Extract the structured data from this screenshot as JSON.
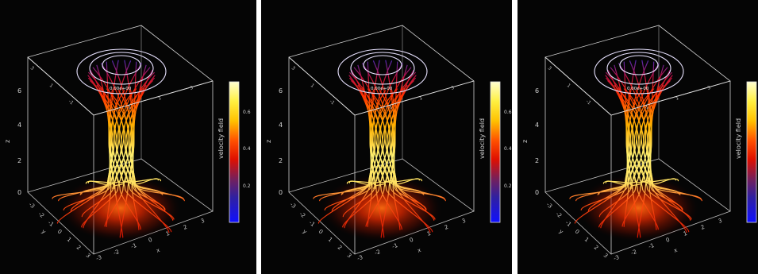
{
  "panels": [
    {
      "id": "panel-1",
      "z_axis_label": "z",
      "z_ticks": [
        "0",
        "2",
        "4",
        "6"
      ],
      "x_axis_label": "x",
      "x_ticks": [
        "-3",
        "-2",
        "-1",
        "0",
        "1",
        "2",
        "3"
      ],
      "y_axis_label": "y",
      "y_ticks": [
        "-3",
        "-2",
        "-1",
        "0",
        "1",
        "2",
        "3"
      ],
      "contour_label": "0.00e+00",
      "colorbar": {
        "title": "velocity field",
        "ticks": [
          "0.2",
          "0.4",
          "0.6"
        ]
      }
    },
    {
      "id": "panel-2",
      "z_axis_label": "z",
      "z_ticks": [
        "0",
        "2",
        "4",
        "6"
      ],
      "x_axis_label": "x",
      "x_ticks": [
        "-3",
        "-2",
        "-1",
        "0",
        "1",
        "2",
        "3"
      ],
      "y_axis_label": "y",
      "y_ticks": [
        "-3",
        "-2",
        "-1",
        "0",
        "1",
        "2",
        "3"
      ],
      "contour_label": "0.00e+00",
      "colorbar": {
        "title": "velocity field",
        "ticks": [
          "0.2",
          "0.4",
          "0.6"
        ]
      }
    },
    {
      "id": "panel-3",
      "z_axis_label": "z",
      "z_ticks": [
        "0",
        "2",
        "4",
        "6"
      ],
      "x_axis_label": "x",
      "x_ticks": [
        "-3",
        "-2",
        "-1",
        "0",
        "1",
        "2",
        "3"
      ],
      "y_axis_label": "y",
      "y_ticks": [
        "-3",
        "-2",
        "-1",
        "0",
        "1",
        "2",
        "3"
      ],
      "contour_label": "0.00e+00",
      "colorbar": {
        "title": "velocity field",
        "ticks": [
          "0.2",
          "0.4",
          "0.6"
        ]
      }
    }
  ],
  "colors": {
    "background": "#050505",
    "box_lines": "#d8d8d8",
    "contour": "#e6e0ff",
    "streamline_low": "#3030c0",
    "streamline_mid": "#ff2000",
    "streamline_high": "#fff060"
  }
}
